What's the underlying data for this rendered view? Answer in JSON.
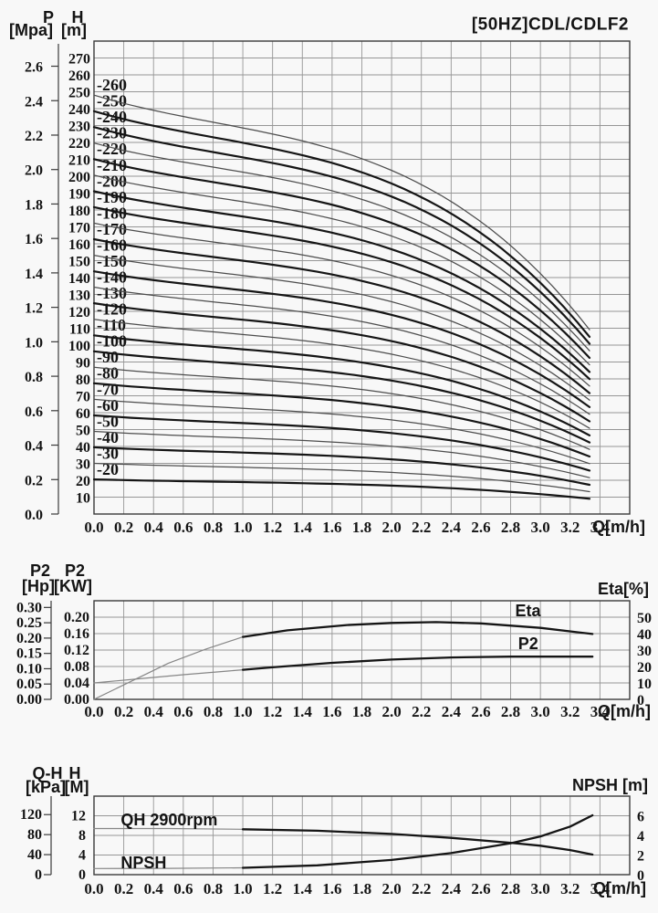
{
  "title": "[50HZ]CDL/CDLF2",
  "chart_data": [
    {
      "name": "head-capacity",
      "type": "line",
      "x_axis": {
        "label": "Q[m/h]",
        "min": 0,
        "max": 3.6,
        "grid_step": 0.2,
        "ticks": [
          "0.0",
          "0.2",
          "0.4",
          "0.6",
          "0.8",
          "1.0",
          "1.2",
          "1.4",
          "1.6",
          "1.8",
          "2.0",
          "2.2",
          "2.4",
          "2.6",
          "2.8",
          "3.0",
          "3.2",
          "3.4"
        ]
      },
      "p_axis": {
        "title": "P",
        "unit": "[Mpa]",
        "meters_per_mpa": 101.97,
        "ticks": [
          "0.0",
          "0.2",
          "0.4",
          "0.6",
          "0.8",
          "1.0",
          "1.2",
          "1.4",
          "1.6",
          "1.8",
          "2.0",
          "2.2",
          "2.4",
          "2.6"
        ]
      },
      "h_axis": {
        "title": "H",
        "unit": "[m]",
        "min": 0,
        "max": 280,
        "grid_step": 10,
        "ticks": [
          "10",
          "20",
          "30",
          "40",
          "50",
          "60",
          "70",
          "80",
          "90",
          "100",
          "110",
          "120",
          "130",
          "140",
          "150",
          "160",
          "170",
          "180",
          "190",
          "200",
          "210",
          "220",
          "230",
          "240",
          "250",
          "260",
          "270"
        ]
      },
      "curve_q_end": 3.33,
      "curves": [
        {
          "label": "-20",
          "h_start": 20.5,
          "h_end": 9.0,
          "bold": true
        },
        {
          "label": "-30",
          "h_start": 30.0,
          "h_end": 13.2,
          "bold": false
        },
        {
          "label": "-40",
          "h_start": 39.5,
          "h_end": 17.3,
          "bold": true
        },
        {
          "label": "-50",
          "h_start": 48.9,
          "h_end": 21.5,
          "bold": false
        },
        {
          "label": "-60",
          "h_start": 58.4,
          "h_end": 25.7,
          "bold": true
        },
        {
          "label": "-70",
          "h_start": 67.9,
          "h_end": 29.8,
          "bold": false
        },
        {
          "label": "-80",
          "h_start": 77.4,
          "h_end": 34.0,
          "bold": true
        },
        {
          "label": "-90",
          "h_start": 86.9,
          "h_end": 38.2,
          "bold": false
        },
        {
          "label": "-100",
          "h_start": 96.3,
          "h_end": 42.3,
          "bold": true
        },
        {
          "label": "-110",
          "h_start": 105.8,
          "h_end": 46.5,
          "bold": true
        },
        {
          "label": "-120",
          "h_start": 115.3,
          "h_end": 50.7,
          "bold": false
        },
        {
          "label": "-130",
          "h_start": 124.8,
          "h_end": 54.8,
          "bold": true
        },
        {
          "label": "-140",
          "h_start": 134.3,
          "h_end": 59.0,
          "bold": false
        },
        {
          "label": "-150",
          "h_start": 143.7,
          "h_end": 63.2,
          "bold": true
        },
        {
          "label": "-160",
          "h_start": 153.2,
          "h_end": 67.3,
          "bold": false
        },
        {
          "label": "-170",
          "h_start": 162.7,
          "h_end": 71.5,
          "bold": true
        },
        {
          "label": "-180",
          "h_start": 172.2,
          "h_end": 75.7,
          "bold": false
        },
        {
          "label": "-190",
          "h_start": 181.7,
          "h_end": 79.8,
          "bold": true
        },
        {
          "label": "-200",
          "h_start": 191.1,
          "h_end": 84.0,
          "bold": true
        },
        {
          "label": "-210",
          "h_start": 200.6,
          "h_end": 88.2,
          "bold": false
        },
        {
          "label": "-220",
          "h_start": 210.1,
          "h_end": 92.3,
          "bold": true
        },
        {
          "label": "-230",
          "h_start": 219.6,
          "h_end": 96.5,
          "bold": false
        },
        {
          "label": "-240",
          "h_start": 229.1,
          "h_end": 100.7,
          "bold": true
        },
        {
          "label": "-250",
          "h_start": 238.5,
          "h_end": 104.8,
          "bold": true
        },
        {
          "label": "-260",
          "h_start": 248.0,
          "h_end": 109.0,
          "bold": false
        }
      ]
    },
    {
      "name": "power-efficiency",
      "type": "line",
      "x_axis": {
        "label": "Q[m/h]",
        "min": 0,
        "max": 3.6,
        "grid_step": 0.2,
        "ticks": [
          "0.0",
          "0.2",
          "0.4",
          "0.6",
          "0.8",
          "1.0",
          "1.2",
          "1.4",
          "1.6",
          "1.8",
          "2.0",
          "2.2",
          "2.4",
          "2.6",
          "2.8",
          "3.0",
          "3.2",
          "3.4"
        ]
      },
      "hp_axis": {
        "title": "P2",
        "unit": "[Hp]",
        "kw_per_hp": 0.7457,
        "ticks": [
          "0.00",
          "0.05",
          "0.10",
          "0.15",
          "0.20",
          "0.25",
          "0.30"
        ]
      },
      "kw_axis": {
        "title": "P2",
        "unit": "[KW]",
        "min": 0,
        "max": 0.24,
        "grid_step": 0.04,
        "ticks": [
          "0.00",
          "0.04",
          "0.08",
          "0.12",
          "0.16",
          "0.20"
        ]
      },
      "eta_axis": {
        "label": "Eta[%]",
        "min": 0,
        "max": 60,
        "grid_step": 10,
        "ticks": [
          "0",
          "10",
          "20",
          "30",
          "40",
          "50"
        ]
      },
      "curves": [
        {
          "label": "Eta",
          "axis": "eta",
          "thin_until": 1.0,
          "label_at": [
            2.83,
            54
          ],
          "points": [
            [
              0,
              0
            ],
            [
              0.25,
              11
            ],
            [
              0.5,
              22
            ],
            [
              0.75,
              30.5
            ],
            [
              1.0,
              38
            ],
            [
              1.3,
              42
            ],
            [
              1.7,
              45.2
            ],
            [
              2.0,
              46.5
            ],
            [
              2.3,
              47
            ],
            [
              2.6,
              46.2
            ],
            [
              3.0,
              43.5
            ],
            [
              3.35,
              39.8
            ]
          ]
        },
        {
          "label": "P2",
          "axis": "kw",
          "thin_until": 1.0,
          "label_at": [
            2.85,
            0.136
          ],
          "points": [
            [
              0,
              0.04
            ],
            [
              0.3,
              0.05
            ],
            [
              0.6,
              0.06
            ],
            [
              0.9,
              0.069
            ],
            [
              1.0,
              0.072
            ],
            [
              1.2,
              0.078
            ],
            [
              1.6,
              0.089
            ],
            [
              2.0,
              0.097
            ],
            [
              2.4,
              0.102
            ],
            [
              2.8,
              0.104
            ],
            [
              3.35,
              0.104
            ]
          ]
        }
      ]
    },
    {
      "name": "qh-npsh",
      "type": "line",
      "x_axis": {
        "label": "Q[m/h]",
        "min": 0,
        "max": 3.6,
        "grid_step": 0.2,
        "ticks": [
          "0.0",
          "0.2",
          "0.4",
          "0.6",
          "0.8",
          "1.0",
          "1.2",
          "1.4",
          "1.6",
          "1.8",
          "2.0",
          "2.2",
          "2.4",
          "2.6",
          "2.8",
          "3.0",
          "3.2",
          "3.4"
        ]
      },
      "kpa_axis": {
        "title": "Q-H",
        "unit": "[kPa]",
        "meters_per_kpa": 0.10197,
        "ticks": [
          "0",
          "40",
          "80",
          "120"
        ]
      },
      "hm_axis": {
        "title": "H",
        "unit": "[M]",
        "min": 0,
        "max": 16,
        "grid_step": 4,
        "ticks": [
          "0",
          "4",
          "8",
          "12"
        ]
      },
      "npsh_axis": {
        "label": "NPSH [m]",
        "min": 0,
        "max": 8,
        "grid_step": 2,
        "ticks": [
          "0",
          "2",
          "4",
          "6"
        ]
      },
      "curves": [
        {
          "label": "QH 2900rpm",
          "axis": "hm",
          "thin_until": 1.0,
          "label_at": [
            0.18,
            11.2
          ],
          "points": [
            [
              0,
              9.4
            ],
            [
              0.5,
              9.4
            ],
            [
              1.0,
              9.25
            ],
            [
              1.5,
              8.95
            ],
            [
              2.0,
              8.3
            ],
            [
              2.4,
              7.5
            ],
            [
              2.8,
              6.5
            ],
            [
              3.0,
              5.9
            ],
            [
              3.2,
              5.0
            ],
            [
              3.35,
              4.1
            ]
          ]
        },
        {
          "label": "NPSH",
          "axis": "npsh",
          "thin_until": 1.0,
          "label_at": [
            0.18,
            1.21
          ],
          "points": [
            [
              0,
              0.62
            ],
            [
              0.5,
              0.64
            ],
            [
              1.0,
              0.7
            ],
            [
              1.5,
              0.95
            ],
            [
              2.0,
              1.5
            ],
            [
              2.4,
              2.2
            ],
            [
              2.8,
              3.2
            ],
            [
              3.0,
              3.9
            ],
            [
              3.2,
              4.9
            ],
            [
              3.35,
              6.05
            ]
          ]
        }
      ]
    }
  ]
}
